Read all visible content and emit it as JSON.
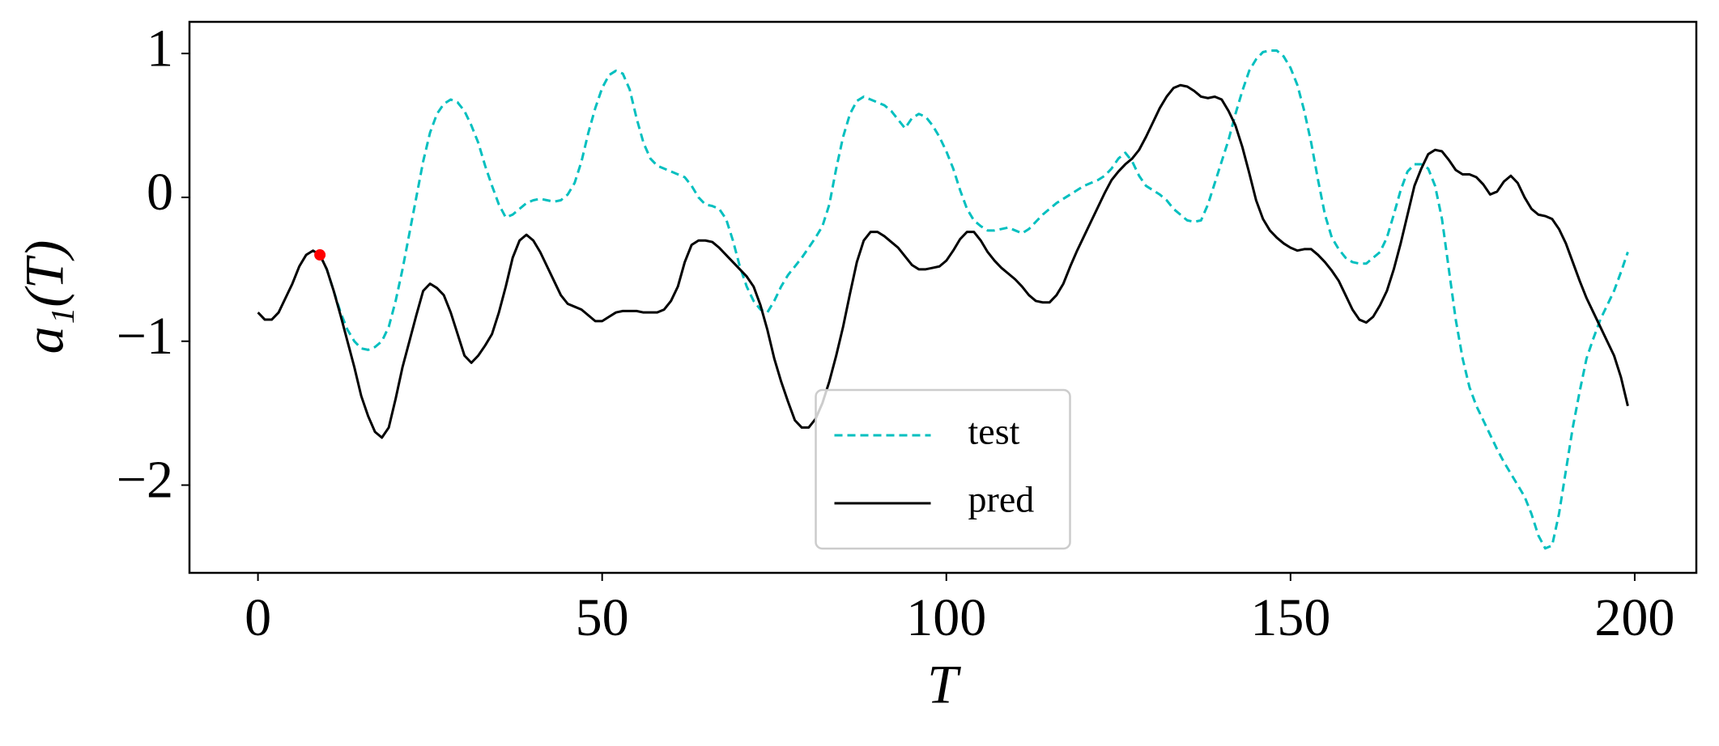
{
  "chart_data": {
    "type": "line",
    "xlabel": "T",
    "ylabel": "a₁(T)",
    "xlim": [
      -9.95,
      208.95
    ],
    "ylim": [
      -2.61,
      1.22
    ],
    "xticks": [
      0,
      50,
      100,
      150,
      200
    ],
    "yticks": [
      1,
      0,
      {
        "value": -1,
        "label": "−1"
      },
      {
        "value": -2,
        "label": "−2"
      }
    ],
    "legend": "lower center",
    "x": [
      0,
      1,
      2,
      3,
      4,
      5,
      6,
      7,
      8,
      9,
      10,
      11,
      12,
      13,
      14,
      15,
      16,
      17,
      18,
      19,
      20,
      21,
      22,
      23,
      24,
      25,
      26,
      27,
      28,
      29,
      30,
      31,
      32,
      33,
      34,
      35,
      36,
      37,
      38,
      39,
      40,
      41,
      42,
      43,
      44,
      45,
      46,
      47,
      48,
      49,
      50,
      51,
      52,
      53,
      54,
      55,
      56,
      57,
      58,
      59,
      60,
      61,
      62,
      63,
      64,
      65,
      66,
      67,
      68,
      69,
      70,
      71,
      72,
      73,
      74,
      75,
      76,
      77,
      78,
      79,
      80,
      81,
      82,
      83,
      84,
      85,
      86,
      87,
      88,
      89,
      90,
      91,
      92,
      93,
      94,
      95,
      96,
      97,
      98,
      99,
      100,
      101,
      102,
      103,
      104,
      105,
      106,
      107,
      108,
      109,
      110,
      111,
      112,
      113,
      114,
      115,
      116,
      117,
      118,
      119,
      120,
      121,
      122,
      123,
      124,
      125,
      126,
      127,
      128,
      129,
      130,
      131,
      132,
      133,
      134,
      135,
      136,
      137,
      138,
      139,
      140,
      141,
      142,
      143,
      144,
      145,
      146,
      147,
      148,
      149,
      150,
      151,
      152,
      153,
      154,
      155,
      156,
      157,
      158,
      159,
      160,
      161,
      162,
      163,
      164,
      165,
      166,
      167,
      168,
      169,
      170,
      171,
      172,
      173,
      174,
      175,
      176,
      177,
      178,
      179,
      180,
      181,
      182,
      183,
      184,
      185,
      186,
      187,
      188,
      189,
      190,
      191,
      192,
      193,
      194,
      195,
      196,
      197,
      198,
      199
    ],
    "series": [
      {
        "name": "test",
        "color": "#00bfbf",
        "dashed": true,
        "values": [
          null,
          null,
          null,
          null,
          null,
          null,
          null,
          null,
          null,
          -0.4,
          -0.5,
          -0.65,
          -0.8,
          -0.92,
          -1.0,
          -1.05,
          -1.06,
          -1.04,
          -1.0,
          -0.9,
          -0.72,
          -0.5,
          -0.25,
          0.0,
          0.25,
          0.45,
          0.58,
          0.65,
          0.68,
          0.66,
          0.6,
          0.5,
          0.38,
          0.22,
          0.08,
          -0.05,
          -0.14,
          -0.12,
          -0.08,
          -0.04,
          -0.02,
          -0.01,
          -0.02,
          -0.03,
          -0.02,
          0.02,
          0.1,
          0.25,
          0.45,
          0.62,
          0.76,
          0.85,
          0.88,
          0.86,
          0.75,
          0.55,
          0.38,
          0.27,
          0.22,
          0.2,
          0.18,
          0.16,
          0.14,
          0.08,
          0.0,
          -0.05,
          -0.06,
          -0.08,
          -0.15,
          -0.3,
          -0.48,
          -0.62,
          -0.72,
          -0.78,
          -0.8,
          -0.72,
          -0.62,
          -0.54,
          -0.48,
          -0.42,
          -0.35,
          -0.28,
          -0.2,
          -0.05,
          0.2,
          0.42,
          0.58,
          0.67,
          0.7,
          0.68,
          0.66,
          0.64,
          0.6,
          0.54,
          0.48,
          0.55,
          0.58,
          0.56,
          0.5,
          0.42,
          0.32,
          0.2,
          0.05,
          -0.08,
          -0.16,
          -0.2,
          -0.23,
          -0.23,
          -0.22,
          -0.21,
          -0.23,
          -0.25,
          -0.22,
          -0.17,
          -0.12,
          -0.08,
          -0.04,
          -0.01,
          0.02,
          0.05,
          0.08,
          0.1,
          0.12,
          0.15,
          0.2,
          0.27,
          0.31,
          0.25,
          0.15,
          0.08,
          0.05,
          0.02,
          -0.02,
          -0.08,
          -0.12,
          -0.16,
          -0.17,
          -0.16,
          -0.05,
          0.1,
          0.25,
          0.4,
          0.58,
          0.74,
          0.88,
          0.96,
          1.01,
          1.02,
          1.02,
          0.98,
          0.9,
          0.78,
          0.6,
          0.38,
          0.12,
          -0.12,
          -0.28,
          -0.36,
          -0.42,
          -0.45,
          -0.46,
          -0.46,
          -0.42,
          -0.38,
          -0.28,
          -0.12,
          0.05,
          0.18,
          0.23,
          0.23,
          0.2,
          0.08,
          -0.15,
          -0.5,
          -0.85,
          -1.12,
          -1.32,
          -1.45,
          -1.55,
          -1.65,
          -1.75,
          -1.84,
          -1.92,
          -2.0,
          -2.08,
          -2.2,
          -2.35,
          -2.44,
          -2.42,
          -2.2,
          -1.9,
          -1.6,
          -1.35,
          -1.12,
          -0.98,
          -0.85,
          -0.75,
          -0.65,
          -0.52,
          -0.38
        ]
      },
      {
        "name": "pred",
        "color": "#000000",
        "dashed": false,
        "values": [
          -0.8,
          -0.85,
          -0.85,
          -0.8,
          -0.7,
          -0.6,
          -0.48,
          -0.4,
          -0.37,
          -0.4,
          -0.5,
          -0.65,
          -0.82,
          -1.0,
          -1.18,
          -1.38,
          -1.52,
          -1.63,
          -1.67,
          -1.6,
          -1.4,
          -1.18,
          -1.0,
          -0.82,
          -0.65,
          -0.6,
          -0.63,
          -0.68,
          -0.8,
          -0.95,
          -1.1,
          -1.15,
          -1.1,
          -1.03,
          -0.95,
          -0.8,
          -0.62,
          -0.42,
          -0.3,
          -0.26,
          -0.3,
          -0.38,
          -0.48,
          -0.58,
          -0.68,
          -0.74,
          -0.76,
          -0.78,
          -0.82,
          -0.86,
          -0.86,
          -0.83,
          -0.8,
          -0.79,
          -0.79,
          -0.79,
          -0.8,
          -0.8,
          -0.8,
          -0.78,
          -0.72,
          -0.62,
          -0.45,
          -0.33,
          -0.3,
          -0.3,
          -0.31,
          -0.35,
          -0.4,
          -0.45,
          -0.5,
          -0.55,
          -0.62,
          -0.75,
          -0.92,
          -1.12,
          -1.28,
          -1.42,
          -1.55,
          -1.6,
          -1.6,
          -1.54,
          -1.43,
          -1.28,
          -1.1,
          -0.9,
          -0.67,
          -0.45,
          -0.3,
          -0.24,
          -0.24,
          -0.27,
          -0.31,
          -0.35,
          -0.41,
          -0.47,
          -0.5,
          -0.5,
          -0.49,
          -0.48,
          -0.44,
          -0.37,
          -0.29,
          -0.24,
          -0.24,
          -0.3,
          -0.38,
          -0.44,
          -0.49,
          -0.53,
          -0.57,
          -0.62,
          -0.68,
          -0.72,
          -0.73,
          -0.73,
          -0.68,
          -0.6,
          -0.48,
          -0.37,
          -0.27,
          -0.17,
          -0.07,
          0.03,
          0.12,
          0.18,
          0.23,
          0.27,
          0.33,
          0.42,
          0.52,
          0.62,
          0.7,
          0.76,
          0.78,
          0.77,
          0.74,
          0.7,
          0.69,
          0.7,
          0.68,
          0.6,
          0.5,
          0.35,
          0.17,
          -0.02,
          -0.15,
          -0.23,
          -0.28,
          -0.32,
          -0.35,
          -0.37,
          -0.36,
          -0.36,
          -0.4,
          -0.45,
          -0.51,
          -0.58,
          -0.68,
          -0.78,
          -0.85,
          -0.87,
          -0.83,
          -0.75,
          -0.65,
          -0.5,
          -0.32,
          -0.12,
          0.08,
          0.2,
          0.3,
          0.33,
          0.32,
          0.26,
          0.19,
          0.16,
          0.16,
          0.14,
          0.09,
          0.02,
          0.04,
          0.11,
          0.15,
          0.1,
          0.0,
          -0.08,
          -0.12,
          -0.13,
          -0.15,
          -0.22,
          -0.32,
          -0.45,
          -0.58,
          -0.7,
          -0.8,
          -0.9,
          -1.0,
          -1.1,
          -1.25,
          -1.45
        ]
      }
    ],
    "highlight": {
      "x": 9,
      "y": -0.4,
      "color": "#ff0000"
    }
  }
}
